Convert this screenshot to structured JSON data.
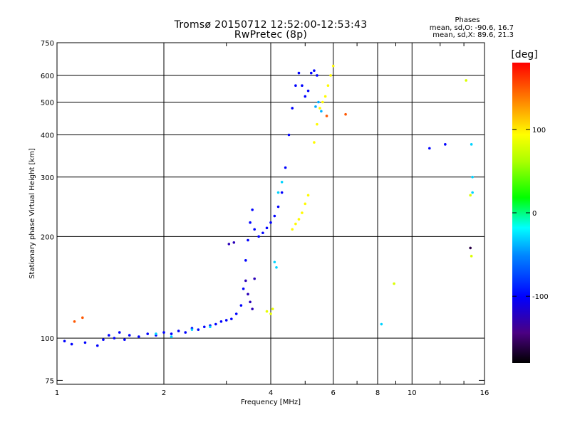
{
  "chart_data": {
    "type": "scatter",
    "title": "Tromsø 20150712 12:52:00-12:53:43",
    "subtitle": "RwPretec (8p)",
    "xlabel": "Frequency [MHz]",
    "ylabel": "Stationary phase Virtual Height [km]",
    "x_scale": "log",
    "y_scale": "log",
    "xlim": [
      1,
      16
    ],
    "ylim": [
      73,
      750
    ],
    "grid": true,
    "x_ticks": [
      1,
      2,
      4,
      6,
      8,
      10,
      16
    ],
    "x_tick_labels": [
      "1",
      "2",
      "4",
      "6",
      "8",
      "10",
      "16"
    ],
    "y_ticks": [
      75,
      100,
      200,
      300,
      400,
      500,
      600,
      750
    ],
    "y_tick_labels": [
      "75",
      "100",
      "200",
      "300",
      "400",
      "500",
      "600",
      "750"
    ],
    "colorbar": {
      "label": "[deg]",
      "range": [
        -180,
        180
      ],
      "ticks": [
        100,
        0,
        -100
      ],
      "tick_labels": [
        "100",
        "0",
        "-100"
      ],
      "colormap": "rainbow"
    },
    "phase_stats": {
      "header": "Phases",
      "o_line": "mean, sd,O: -90.6, 16.7",
      "x_line": "mean, sd,X:  89.6, 21.3"
    },
    "series": [
      {
        "phase": -100,
        "points": [
          [
            1.05,
            98
          ],
          [
            1.1,
            96
          ],
          [
            1.2,
            97
          ],
          [
            1.3,
            95
          ],
          [
            1.35,
            99
          ],
          [
            1.4,
            102
          ],
          [
            1.45,
            100
          ],
          [
            1.5,
            104
          ],
          [
            1.55,
            99
          ],
          [
            1.6,
            102
          ],
          [
            1.7,
            101
          ],
          [
            1.8,
            103
          ],
          [
            1.9,
            102
          ],
          [
            2.0,
            104
          ],
          [
            2.1,
            103
          ],
          [
            2.2,
            105
          ],
          [
            2.3,
            104
          ],
          [
            2.4,
            107
          ],
          [
            2.5,
            106
          ],
          [
            2.6,
            108
          ],
          [
            2.7,
            109
          ],
          [
            2.8,
            110
          ],
          [
            2.9,
            112
          ],
          [
            3.0,
            113
          ],
          [
            3.1,
            114
          ],
          [
            3.2,
            118
          ],
          [
            3.3,
            125
          ],
          [
            3.35,
            140
          ],
          [
            3.4,
            170
          ],
          [
            3.45,
            195
          ],
          [
            3.5,
            220
          ],
          [
            3.55,
            240
          ],
          [
            3.6,
            210
          ],
          [
            3.7,
            200
          ],
          [
            3.8,
            205
          ],
          [
            3.9,
            212
          ],
          [
            4.0,
            220
          ],
          [
            4.1,
            230
          ],
          [
            4.2,
            245
          ],
          [
            4.3,
            270
          ],
          [
            4.4,
            320
          ],
          [
            4.5,
            400
          ],
          [
            4.6,
            480
          ],
          [
            4.7,
            560
          ],
          [
            4.8,
            610
          ],
          [
            4.9,
            560
          ],
          [
            5.0,
            520
          ],
          [
            5.1,
            540
          ],
          [
            5.2,
            610
          ],
          [
            5.3,
            620
          ],
          [
            5.4,
            600
          ]
        ]
      },
      {
        "phase": -125,
        "points": [
          [
            3.05,
            190
          ],
          [
            3.15,
            192
          ],
          [
            3.4,
            148
          ],
          [
            3.45,
            135
          ],
          [
            3.5,
            128
          ],
          [
            3.55,
            122
          ],
          [
            3.6,
            150
          ]
        ]
      },
      {
        "phase": 95,
        "points": [
          [
            4.6,
            210
          ],
          [
            4.7,
            218
          ],
          [
            4.8,
            225
          ],
          [
            4.9,
            235
          ],
          [
            5.0,
            250
          ],
          [
            5.1,
            265
          ],
          [
            5.3,
            380
          ],
          [
            5.4,
            430
          ],
          [
            5.5,
            480
          ],
          [
            5.6,
            500
          ],
          [
            5.7,
            520
          ],
          [
            5.8,
            560
          ],
          [
            5.9,
            600
          ],
          [
            6.0,
            640
          ]
        ]
      },
      {
        "phase": -30,
        "points": [
          [
            1.9,
            103
          ],
          [
            2.1,
            101
          ],
          [
            2.4,
            106
          ],
          [
            2.7,
            108
          ],
          [
            4.1,
            168
          ],
          [
            4.15,
            162
          ],
          [
            4.2,
            270
          ],
          [
            4.3,
            290
          ]
        ]
      },
      {
        "phase": 85,
        "points": [
          [
            3.9,
            120
          ],
          [
            4.0,
            118
          ],
          [
            4.05,
            122
          ]
        ]
      },
      {
        "phase": -40,
        "points": [
          [
            5.35,
            485
          ],
          [
            5.45,
            500
          ],
          [
            5.55,
            470
          ]
        ]
      },
      {
        "phase": 150,
        "points": [
          [
            1.12,
            112
          ],
          [
            1.18,
            115
          ],
          [
            5.75,
            455
          ],
          [
            6.5,
            460
          ]
        ]
      },
      {
        "phase": 80,
        "points": [
          [
            8.9,
            145
          ],
          [
            14.2,
            580
          ],
          [
            14.6,
            265
          ],
          [
            14.7,
            175
          ]
        ]
      },
      {
        "phase": -100,
        "points": [
          [
            11.2,
            365
          ],
          [
            12.4,
            375
          ]
        ]
      },
      {
        "phase": -30,
        "points": [
          [
            8.2,
            110
          ],
          [
            14.7,
            375
          ],
          [
            14.8,
            300
          ],
          [
            14.8,
            270
          ]
        ]
      },
      {
        "phase": -160,
        "points": [
          [
            14.6,
            185
          ]
        ]
      }
    ]
  }
}
